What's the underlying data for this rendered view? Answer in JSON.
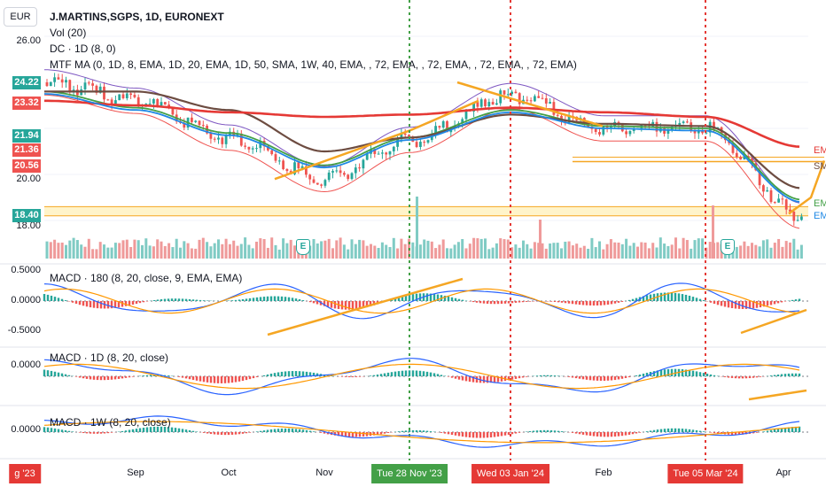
{
  "header": {
    "currency": "EUR",
    "symbol": "J.MARTINS,SGPS, 1D, EURONEXT",
    "studies": [
      "Vol (20)",
      "DC · 1D (8, 0)",
      "MTF MA (0, 1D, 8, EMA, 1D, 20, EMA, 1D, 50, SMA, 1W, 40, EMA, , 72, EMA, , 72, EMA, , 72, EMA, , 72, EMA)"
    ]
  },
  "price_axis": {
    "ticks": [
      "26.00",
      "20.00",
      "18.00"
    ],
    "tags": [
      {
        "label": "24.22",
        "color": "#26a69a"
      },
      {
        "label": "23.32",
        "color": "#ef5350"
      },
      {
        "label": "21.94",
        "color": "#26a69a"
      },
      {
        "label": "21.36",
        "color": "#ef5350"
      },
      {
        "label": "20.56",
        "color": "#ef5350"
      },
      {
        "label": "18.40",
        "color": "#26a69a"
      }
    ]
  },
  "right_labels": [
    {
      "label": "EMA",
      "color": "#e53935"
    },
    {
      "label": "SMA",
      "color": "#6d4c41"
    },
    {
      "label": "EMA",
      "color": "#43a047"
    },
    {
      "label": "EMA",
      "color": "#1e88e5"
    }
  ],
  "panes": [
    {
      "label": "MACD · 180 (8, 20, close, 9, EMA, EMA)",
      "ticks": [
        "0.5000",
        "0.0000",
        "-0.5000"
      ]
    },
    {
      "label": "MACD · 1D (8, 20, close)",
      "ticks": [
        "0.0000"
      ]
    },
    {
      "label": "MACD · 1W (8, 20, close)",
      "ticks": [
        "0.0000"
      ]
    }
  ],
  "time_axis": {
    "ticks": [
      "g '23",
      "Sep",
      "Oct",
      "Nov",
      "Feb",
      "Apr"
    ],
    "tags": [
      {
        "label": "Tue 28 Nov '23",
        "color": "#43a047"
      },
      {
        "label": "Wed 03 Jan '24",
        "color": "#e53935"
      },
      {
        "label": "Tue 05 Mar '24",
        "color": "#e53935"
      }
    ],
    "first_tag_label": "g '23",
    "first_tag_color": "#e53935"
  },
  "events": [
    {
      "label": "E"
    },
    {
      "label": "E"
    }
  ],
  "chart_data": {
    "type": "line",
    "title": "J.MARTINS,SGPS, 1D, EURONEXT",
    "ylim": [
      17.5,
      26.5
    ],
    "x": [
      "g '23",
      "Sep",
      "Oct",
      "Nov",
      "Tue 28 Nov '23",
      "Wed 03 Jan '24",
      "Feb",
      "Tue 05 Mar '24",
      "Apr"
    ],
    "series": [
      {
        "values": [
          24.0,
          23.2,
          21.6,
          19.8,
          21.5,
          23.4,
          22.0,
          22.0,
          18.2
        ]
      },
      {
        "values": [
          23.6,
          22.9,
          21.8,
          20.4,
          21.6,
          22.8,
          22.1,
          22.0,
          18.9
        ]
      },
      {
        "values": [
          23.6,
          23.6,
          22.8,
          21.0,
          21.6,
          22.6,
          22.2,
          22.1,
          19.4
        ]
      },
      {
        "values": [
          23.2,
          23.0,
          22.7,
          22.5,
          22.6,
          22.9,
          22.7,
          22.5,
          21.2
        ]
      }
    ],
    "levels": [
      20.56,
      18.4
    ],
    "grid": true,
    "legend": "top-left"
  }
}
